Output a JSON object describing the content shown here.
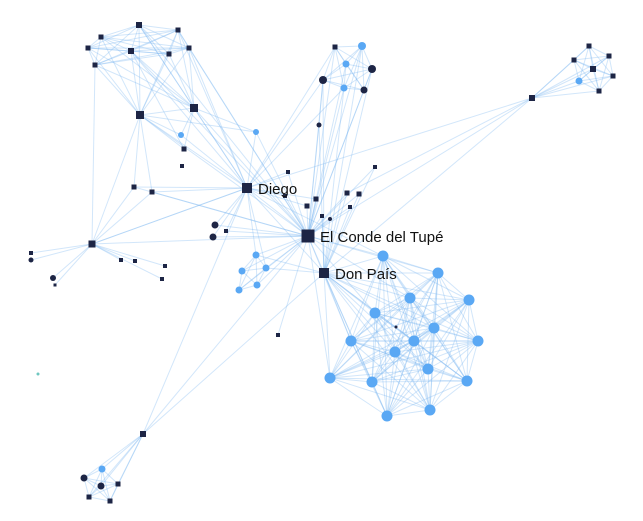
{
  "graph": {
    "labels": {
      "diego": "Diego",
      "conde": "El Conde del Tupé",
      "donpais": "Don País"
    },
    "colors": {
      "square_node": "#1d2545",
      "circle_dark": "#1d2545",
      "circle_light": "#5aa8f4",
      "edge": "#7fb8f0",
      "teal_dot": "#6fc7c0"
    }
  }
}
